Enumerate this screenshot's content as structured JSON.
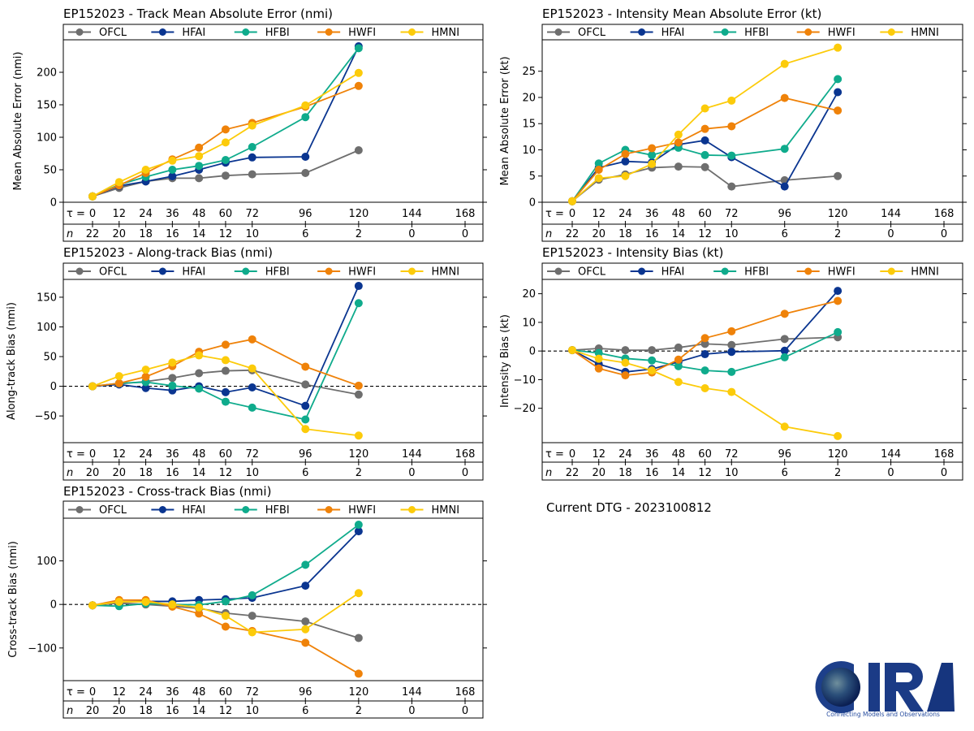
{
  "storm": "EP152023",
  "dtg_label": "Current DTG - 2023100812",
  "logo": {
    "text": "CIRA",
    "tagline": "Connecting Models and Observations"
  },
  "legend": [
    {
      "name": "OFCL",
      "color": "#6e6e6e"
    },
    {
      "name": "HFAI",
      "color": "#0a3590"
    },
    {
      "name": "HFBI",
      "color": "#0fab8c"
    },
    {
      "name": "HWFI",
      "color": "#ef8209"
    },
    {
      "name": "HMNI",
      "color": "#fccb0a"
    }
  ],
  "tau_label": "τ = ",
  "n_label": "n",
  "chart_data": [
    {
      "id": "track-mae",
      "type": "line",
      "title": "EP152023 - Track Mean Absolute Error (nmi)",
      "ylabel": "Mean Absolute Error (nmi)",
      "xlabel": "τ",
      "x_ticks": [
        0,
        12,
        24,
        36,
        48,
        60,
        72,
        96,
        120,
        144,
        168
      ],
      "n": [
        22,
        20,
        18,
        16,
        14,
        12,
        10,
        6,
        2,
        0,
        0
      ],
      "yticks": [
        0,
        50,
        100,
        150,
        200
      ],
      "ylim": [
        0,
        250
      ],
      "zero_line": false,
      "x": [
        0,
        12,
        24,
        36,
        48,
        60,
        72,
        96,
        120
      ],
      "series": [
        {
          "name": "OFCL",
          "values": [
            9,
            22,
            32,
            37,
            37,
            41,
            43,
            45,
            80
          ]
        },
        {
          "name": "HFAI",
          "values": [
            9,
            25,
            32,
            40,
            50,
            61,
            69,
            70,
            240
          ]
        },
        {
          "name": "HFBI",
          "values": [
            9,
            27,
            39,
            50,
            56,
            65,
            85,
            131,
            237
          ]
        },
        {
          "name": "HWFI",
          "values": [
            9,
            26,
            45,
            66,
            84,
            112,
            122,
            147,
            179
          ]
        },
        {
          "name": "HMNI",
          "values": [
            9,
            31,
            50,
            64,
            71,
            92,
            118,
            149,
            199
          ]
        }
      ]
    },
    {
      "id": "intensity-mae",
      "type": "line",
      "title": "EP152023 - Intensity Mean Absolute Error (kt)",
      "ylabel": "Mean Absolute Error (kt)",
      "xlabel": "τ",
      "x_ticks": [
        0,
        12,
        24,
        36,
        48,
        60,
        72,
        96,
        120,
        144,
        168
      ],
      "n": [
        22,
        20,
        18,
        16,
        14,
        12,
        10,
        6,
        2,
        0,
        0
      ],
      "yticks": [
        0,
        5,
        10,
        15,
        20,
        25
      ],
      "ylim": [
        0,
        31
      ],
      "zero_line": false,
      "x": [
        0,
        12,
        24,
        36,
        48,
        60,
        72,
        96,
        120
      ],
      "series": [
        {
          "name": "OFCL",
          "values": [
            0.2,
            4.3,
            5.3,
            6.6,
            6.8,
            6.7,
            3.0,
            4.2,
            5.0
          ]
        },
        {
          "name": "HFAI",
          "values": [
            0.2,
            6.6,
            7.8,
            7.6,
            11.0,
            11.8,
            8.6,
            3.0,
            21.0
          ]
        },
        {
          "name": "HFBI",
          "values": [
            0.2,
            7.4,
            10.0,
            9.0,
            10.4,
            9.0,
            8.9,
            10.2,
            23.5
          ]
        },
        {
          "name": "HWFI",
          "values": [
            0.2,
            6.2,
            9.2,
            10.3,
            11.4,
            14.0,
            14.5,
            19.9,
            17.5
          ]
        },
        {
          "name": "HMNI",
          "values": [
            0.2,
            4.6,
            5.0,
            7.3,
            12.9,
            17.9,
            19.4,
            26.4,
            29.5
          ]
        }
      ]
    },
    {
      "id": "along-track-bias",
      "type": "line",
      "title": "EP152023 - Along-track Bias (nmi)",
      "ylabel": "Along-track Bias (nmi)",
      "xlabel": "τ",
      "x_ticks": [
        0,
        12,
        24,
        36,
        48,
        60,
        72,
        96,
        120,
        144,
        168
      ],
      "n": [
        20,
        20,
        18,
        16,
        14,
        12,
        10,
        6,
        2,
        0,
        0
      ],
      "yticks": [
        -50,
        0,
        50,
        100,
        150
      ],
      "ylim": [
        -95,
        180
      ],
      "zero_line": true,
      "x": [
        0,
        12,
        24,
        36,
        48,
        60,
        72,
        96,
        120
      ],
      "series": [
        {
          "name": "OFCL",
          "values": [
            0,
            4,
            8,
            14,
            22,
            26,
            27,
            3,
            -14
          ]
        },
        {
          "name": "HFAI",
          "values": [
            0,
            3,
            -3,
            -7,
            0,
            -10,
            -2,
            -33,
            169
          ]
        },
        {
          "name": "HFBI",
          "values": [
            0,
            5,
            7,
            1,
            -4,
            -26,
            -36,
            -56,
            140
          ]
        },
        {
          "name": "HWFI",
          "values": [
            0,
            5,
            16,
            34,
            58,
            70,
            79,
            33,
            1
          ]
        },
        {
          "name": "HMNI",
          "values": [
            0,
            17,
            28,
            40,
            52,
            44,
            30,
            -72,
            -83
          ]
        }
      ]
    },
    {
      "id": "intensity-bias",
      "type": "line",
      "title": "EP152023 - Intensity Bias (kt)",
      "ylabel": "Intensity Bias (kt)",
      "xlabel": "τ",
      "x_ticks": [
        0,
        12,
        24,
        36,
        48,
        60,
        72,
        96,
        120,
        144,
        168
      ],
      "n": [
        22,
        20,
        18,
        16,
        14,
        12,
        10,
        6,
        2,
        0,
        0
      ],
      "yticks": [
        -20,
        -10,
        0,
        10,
        20
      ],
      "ylim": [
        -32,
        25
      ],
      "zero_line": true,
      "x": [
        0,
        12,
        24,
        36,
        48,
        60,
        72,
        96,
        120
      ],
      "series": [
        {
          "name": "OFCL",
          "values": [
            0.3,
            0.9,
            0.3,
            0.3,
            1.2,
            2.5,
            2.1,
            4.2,
            4.8
          ]
        },
        {
          "name": "HFAI",
          "values": [
            0.3,
            -4.6,
            -7.3,
            -6.3,
            -3.8,
            -1.1,
            -0.3,
            0.1,
            21.0
          ]
        },
        {
          "name": "HFBI",
          "values": [
            0.3,
            -0.7,
            -2.6,
            -3.3,
            -5.3,
            -6.8,
            -7.3,
            -2.2,
            6.6
          ]
        },
        {
          "name": "HWFI",
          "values": [
            0.3,
            -6.1,
            -8.5,
            -7.5,
            -3.0,
            4.5,
            6.9,
            13.0,
            17.5
          ]
        },
        {
          "name": "HMNI",
          "values": [
            0.3,
            -2.7,
            -4.1,
            -6.8,
            -10.8,
            -13.0,
            -14.3,
            -26.4,
            -29.7
          ]
        }
      ]
    },
    {
      "id": "cross-track-bias",
      "type": "line",
      "title": "EP152023 - Cross-track Bias (nmi)",
      "ylabel": "Cross-track Bias (nmi)",
      "xlabel": "τ",
      "x_ticks": [
        0,
        12,
        24,
        36,
        48,
        60,
        72,
        96,
        120,
        144,
        168
      ],
      "n": [
        20,
        20,
        18,
        16,
        14,
        12,
        10,
        6,
        2,
        0,
        0
      ],
      "yticks": [
        -100,
        0,
        100
      ],
      "ylim": [
        -175,
        198
      ],
      "zero_line": true,
      "x": [
        0,
        12,
        24,
        36,
        48,
        60,
        72,
        96,
        120
      ],
      "series": [
        {
          "name": "OFCL",
          "values": [
            -2,
            3,
            0,
            -4,
            -9,
            -20,
            -26,
            -39,
            -77
          ]
        },
        {
          "name": "HFAI",
          "values": [
            -2,
            6,
            7,
            7,
            10,
            12,
            15,
            43,
            168
          ]
        },
        {
          "name": "HFBI",
          "values": [
            -2,
            -4,
            2,
            0,
            -1,
            7,
            21,
            91,
            183
          ]
        },
        {
          "name": "HWFI",
          "values": [
            -2,
            10,
            10,
            -5,
            -21,
            -51,
            -61,
            -88,
            -159
          ]
        },
        {
          "name": "HMNI",
          "values": [
            -2,
            6,
            6,
            0,
            -7,
            -26,
            -64,
            -57,
            26
          ]
        }
      ]
    }
  ]
}
